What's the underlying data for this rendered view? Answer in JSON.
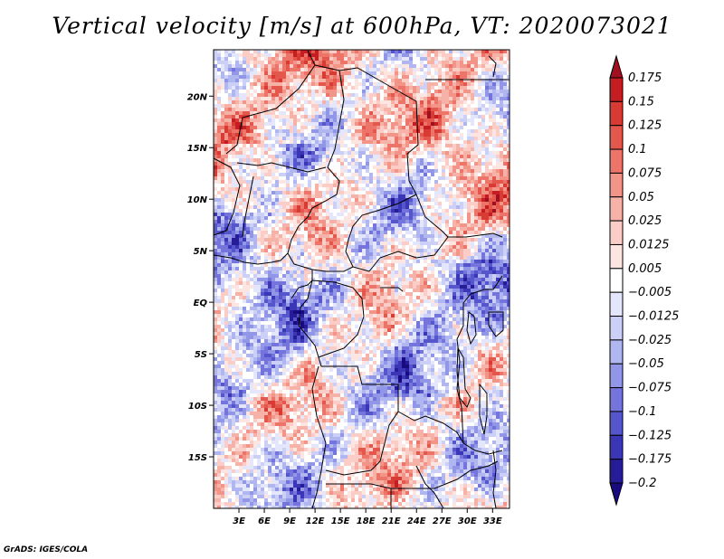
{
  "chart_data": {
    "type": "heatmap",
    "title": "Vertical velocity [m/s] at 600hPa, VT: 2020073021",
    "variable": "Vertical velocity",
    "units": "m/s",
    "level": "600hPa",
    "valid_time": "2020073021",
    "x_range": [
      0,
      35
    ],
    "y_range": [
      -20,
      24.5
    ],
    "x_tick_values": [
      3,
      6,
      9,
      12,
      15,
      18,
      21,
      24,
      27,
      30,
      33
    ],
    "x_tick_labels": [
      "3E",
      "6E",
      "9E",
      "12E",
      "15E",
      "18E",
      "21E",
      "24E",
      "27E",
      "30E",
      "33E"
    ],
    "y_tick_values": [
      20,
      15,
      10,
      5,
      0,
      -5,
      -10,
      -15
    ],
    "y_tick_labels": [
      "20N",
      "15N",
      "10N",
      "5N",
      "EQ",
      "5S",
      "10S",
      "15S"
    ],
    "colorbar": {
      "levels": [
        "0.175",
        "0.15",
        "0.125",
        "0.1",
        "0.075",
        "0.05",
        "0.025",
        "0.0125",
        "0.005",
        "-0.005",
        "-0.0125",
        "-0.025",
        "-0.05",
        "-0.075",
        "-0.1",
        "-0.125",
        "-0.175",
        "-0.2"
      ],
      "colors": [
        "#a01020",
        "#c41e22",
        "#d83a34",
        "#e4574d",
        "#ec7468",
        "#f29488",
        "#f7b2a8",
        "#fbcdc6",
        "#fde6e2",
        "#ffffff",
        "#e4e6fb",
        "#ccd0f6",
        "#b0b6f0",
        "#9196e6",
        "#7474dc",
        "#5555cc",
        "#3b36b5",
        "#261c98",
        "#1a0a80"
      ]
    }
  },
  "credit": "GrADS: IGES/COLA"
}
